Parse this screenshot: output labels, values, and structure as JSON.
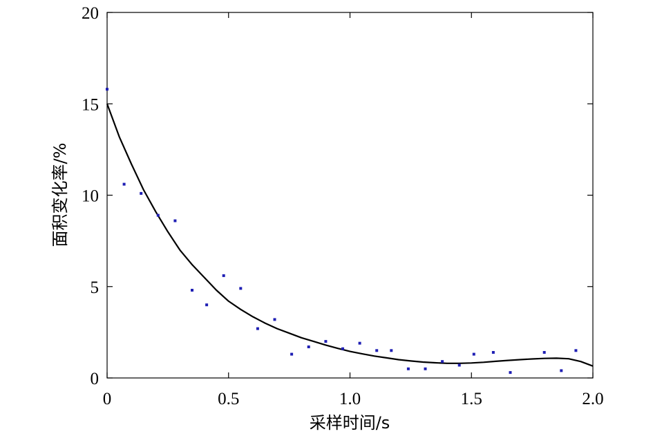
{
  "chart_data": {
    "type": "scatter",
    "xlabel": "采样时间/s",
    "ylabel": "面积变化率/%",
    "xlim": [
      0,
      2.0
    ],
    "ylim": [
      0,
      20
    ],
    "x_ticks": [
      {
        "value": 0,
        "label": "0"
      },
      {
        "value": 0.5,
        "label": "0.5"
      },
      {
        "value": 1.0,
        "label": "1.0"
      },
      {
        "value": 1.5,
        "label": "1.5"
      },
      {
        "value": 2.0,
        "label": "2.0"
      }
    ],
    "y_ticks": [
      {
        "value": 0,
        "label": "0"
      },
      {
        "value": 5,
        "label": "5"
      },
      {
        "value": 10,
        "label": "10"
      },
      {
        "value": 15,
        "label": "15"
      },
      {
        "value": 20,
        "label": "20"
      }
    ],
    "grid": false,
    "colors": {
      "points": "#1f1fb4",
      "line": "#000000"
    },
    "series": [
      {
        "kind": "scatter",
        "x": [
          0.0,
          0.07,
          0.14,
          0.21,
          0.28,
          0.35,
          0.41,
          0.48,
          0.55,
          0.62,
          0.69,
          0.76,
          0.83,
          0.9,
          0.97,
          1.04,
          1.11,
          1.17,
          1.24,
          1.31,
          1.38,
          1.45,
          1.51,
          1.59,
          1.66,
          1.8,
          1.87,
          1.93
        ],
        "y": [
          15.8,
          10.6,
          10.1,
          8.9,
          8.6,
          4.8,
          4.0,
          5.6,
          4.9,
          2.7,
          3.2,
          1.3,
          1.7,
          2.0,
          1.6,
          1.9,
          1.5,
          1.5,
          0.5,
          0.5,
          0.9,
          0.7,
          1.3,
          1.4,
          0.3,
          1.4,
          0.4,
          1.5
        ]
      },
      {
        "kind": "line",
        "x": [
          0.0,
          0.05,
          0.1,
          0.15,
          0.2,
          0.25,
          0.3,
          0.35,
          0.4,
          0.45,
          0.5,
          0.55,
          0.6,
          0.65,
          0.7,
          0.75,
          0.8,
          0.85,
          0.9,
          0.95,
          1.0,
          1.05,
          1.1,
          1.15,
          1.2,
          1.25,
          1.3,
          1.35,
          1.4,
          1.45,
          1.5,
          1.55,
          1.6,
          1.65,
          1.7,
          1.75,
          1.8,
          1.85,
          1.9,
          1.95,
          2.0
        ],
        "y": [
          15.0,
          13.2,
          11.7,
          10.3,
          9.1,
          8.0,
          7.0,
          6.2,
          5.5,
          4.8,
          4.2,
          3.75,
          3.35,
          3.0,
          2.7,
          2.45,
          2.2,
          2.0,
          1.8,
          1.62,
          1.45,
          1.32,
          1.2,
          1.1,
          1.0,
          0.93,
          0.87,
          0.83,
          0.8,
          0.8,
          0.82,
          0.86,
          0.91,
          0.96,
          1.0,
          1.04,
          1.07,
          1.08,
          1.05,
          0.9,
          0.65
        ]
      }
    ]
  }
}
